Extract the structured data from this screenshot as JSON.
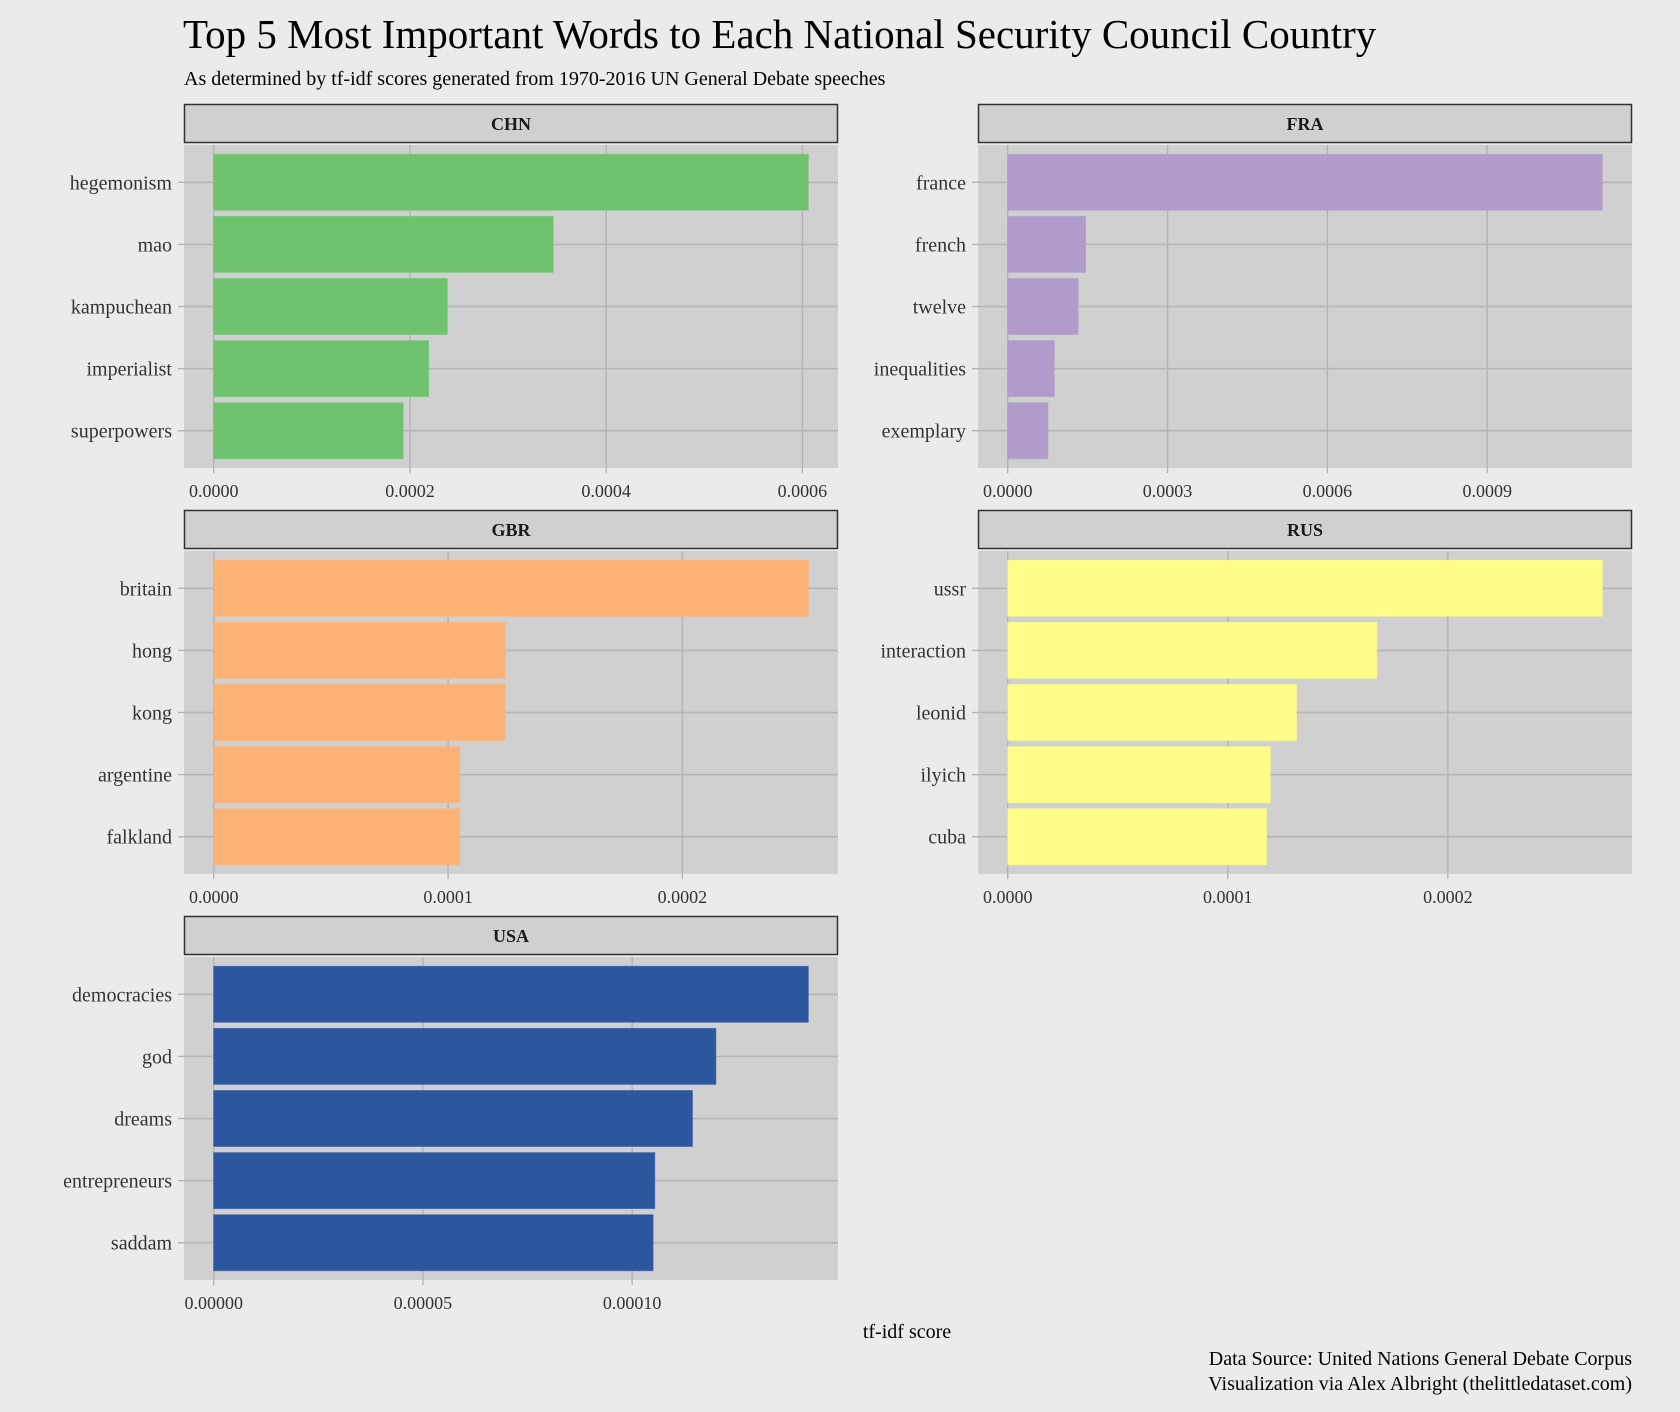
{
  "chart_data": {
    "type": "bar",
    "orientation": "horizontal",
    "title": "Top 5 Most Important Words to Each National Security Council Country",
    "subtitle": "As determined by tf-idf scores generated from 1970-2016 UN General Debate speeches",
    "xlabel": "tf-idf score",
    "ylabel": "",
    "caption": [
      "Data Source: United Nations General Debate Corpus",
      "Visualization via Alex Albright (thelittledataset.com)"
    ],
    "grid": true,
    "legend": "none",
    "facets": [
      {
        "name": "CHN",
        "color": "#6fc36e",
        "categories": [
          "hegemonism",
          "mao",
          "kampuchean",
          "imperialist",
          "superpowers"
        ],
        "values": [
          0.000606,
          0.000346,
          0.000238,
          0.000219,
          0.000193
        ],
        "xlim": [
          -3.03e-05,
          0.0006363
        ],
        "xticks": [
          0.0,
          0.0002,
          0.0004,
          0.0006
        ],
        "xtick_labels": [
          "0.0000",
          "0.0002",
          "0.0004",
          "0.0006"
        ]
      },
      {
        "name": "FRA",
        "color": "#af9ccb",
        "categories": [
          "france",
          "french",
          "twelve",
          "inequalities",
          "exemplary"
        ],
        "values": [
          0.001116,
          0.000146,
          0.000132,
          8.73e-05,
          7.52e-05
        ],
        "xlim": [
          -5.58e-05,
          0.0011718
        ],
        "xticks": [
          0.0,
          0.0003,
          0.0006,
          0.0009
        ],
        "xtick_labels": [
          "0.0000",
          "0.0003",
          "0.0006",
          "0.0009"
        ]
      },
      {
        "name": "GBR",
        "color": "#fbb274",
        "categories": [
          "britain",
          "hong",
          "kong",
          "argentine",
          "falkland"
        ],
        "values": [
          0.0002537,
          0.0001243,
          0.0001243,
          0.0001049,
          0.0001049
        ],
        "xlim": [
          -1.27e-05,
          0.0002664
        ],
        "xticks": [
          0.0,
          0.0001,
          0.0002
        ],
        "xtick_labels": [
          "0.0000",
          "0.0001",
          "0.0002"
        ]
      },
      {
        "name": "RUS",
        "color": "#fffd88",
        "categories": [
          "ussr",
          "interaction",
          "leonid",
          "ilyich",
          "cuba"
        ],
        "values": [
          0.0002702,
          0.0001677,
          0.0001312,
          0.0001193,
          0.0001176
        ],
        "xlim": [
          -1.35e-05,
          0.0002837
        ],
        "xticks": [
          0.0,
          0.0001,
          0.0002
        ],
        "xtick_labels": [
          "0.0000",
          "0.0001",
          "0.0002"
        ]
      },
      {
        "name": "USA",
        "color": "#2c579f",
        "categories": [
          "democracies",
          "god",
          "dreams",
          "entrepreneurs",
          "saddam"
        ],
        "values": [
          0.0001421,
          0.00012,
          0.0001144,
          0.0001054,
          0.000105
        ],
        "xlim": [
          -7.1e-06,
          0.0001492
        ],
        "xticks": [
          0.0,
          5e-05,
          0.0001
        ],
        "xtick_labels": [
          "0.00000",
          "0.00005",
          "0.00010"
        ]
      }
    ]
  }
}
